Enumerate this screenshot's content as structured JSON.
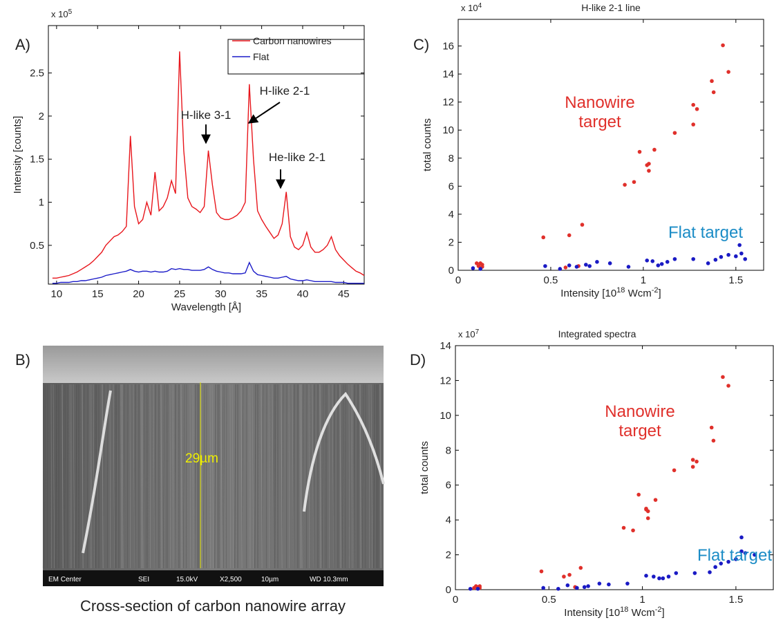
{
  "panel_labels": [
    "A)",
    "B)",
    "C)",
    "D)"
  ],
  "image_panel": {
    "measure": "29µm",
    "info_bar": [
      "EM Center",
      "SEI",
      "15.0kV",
      "X2,500",
      "10µm",
      "WD 10.3mm"
    ],
    "caption": "Cross-section of carbon nanowire array"
  },
  "chart_data": [
    {
      "type": "line",
      "xlabel": "Wavelength [Å]",
      "ylabel": "Intensity [counts]",
      "y_scale": "x 10",
      "y_scale_exp": "5",
      "legend": "upper right",
      "annotations": [
        "H-like 3-1",
        "H-like 2-1",
        "He-like 2-1"
      ],
      "xlim": [
        9,
        47.5
      ],
      "ylim": [
        0.05,
        3.05
      ],
      "xticks": [
        10,
        15,
        20,
        25,
        30,
        35,
        40,
        45
      ],
      "yticks": [
        0.5,
        1,
        1.5,
        2,
        2.5
      ],
      "x": [
        9.5,
        10,
        10.5,
        11,
        11.5,
        12,
        12.5,
        13,
        13.5,
        14,
        14.5,
        15,
        15.5,
        16,
        16.5,
        17,
        17.5,
        18,
        18.5,
        19,
        19.5,
        20,
        20.5,
        21,
        21.5,
        22,
        22.5,
        23,
        23.5,
        24,
        24.5,
        25,
        25.5,
        26,
        26.5,
        27,
        27.5,
        28,
        28.5,
        29,
        29.5,
        30,
        30.5,
        31,
        31.5,
        32,
        32.5,
        33,
        33.5,
        34,
        34.5,
        35,
        35.5,
        36,
        36.5,
        37,
        37.5,
        38,
        38.5,
        39,
        39.5,
        40,
        40.5,
        41,
        41.5,
        42,
        42.5,
        43,
        43.5,
        44,
        44.5,
        45,
        45.5,
        46,
        46.5,
        47,
        47.5
      ],
      "series": [
        {
          "name": "Carbon nanowires",
          "color": "#e8151b",
          "values": [
            0.12,
            0.12,
            0.13,
            0.14,
            0.15,
            0.17,
            0.19,
            0.22,
            0.25,
            0.28,
            0.32,
            0.37,
            0.42,
            0.5,
            0.55,
            0.6,
            0.62,
            0.66,
            0.72,
            1.77,
            0.95,
            0.75,
            0.8,
            1.0,
            0.85,
            1.35,
            0.9,
            0.95,
            1.05,
            1.25,
            1.1,
            2.75,
            1.6,
            1.05,
            0.95,
            0.92,
            0.88,
            0.95,
            1.6,
            1.2,
            0.88,
            0.82,
            0.8,
            0.8,
            0.82,
            0.85,
            0.9,
            1.0,
            2.37,
            1.5,
            0.9,
            0.8,
            0.72,
            0.65,
            0.58,
            0.62,
            0.75,
            1.12,
            0.6,
            0.48,
            0.45,
            0.5,
            0.65,
            0.48,
            0.42,
            0.42,
            0.45,
            0.5,
            0.6,
            0.45,
            0.38,
            0.33,
            0.28,
            0.24,
            0.2,
            0.18,
            0.15
          ]
        },
        {
          "name": "Flat",
          "color": "#1c1cc8",
          "values": [
            0.06,
            0.06,
            0.07,
            0.07,
            0.07,
            0.08,
            0.08,
            0.09,
            0.09,
            0.1,
            0.11,
            0.12,
            0.13,
            0.15,
            0.16,
            0.17,
            0.18,
            0.19,
            0.2,
            0.22,
            0.2,
            0.19,
            0.2,
            0.2,
            0.19,
            0.2,
            0.19,
            0.19,
            0.2,
            0.23,
            0.22,
            0.23,
            0.22,
            0.22,
            0.21,
            0.21,
            0.21,
            0.22,
            0.25,
            0.22,
            0.2,
            0.19,
            0.18,
            0.18,
            0.17,
            0.17,
            0.17,
            0.18,
            0.3,
            0.2,
            0.16,
            0.15,
            0.14,
            0.13,
            0.12,
            0.12,
            0.13,
            0.14,
            0.11,
            0.1,
            0.09,
            0.09,
            0.1,
            0.09,
            0.08,
            0.08,
            0.08,
            0.08,
            0.08,
            0.07,
            0.07,
            0.07,
            0.06,
            0.06,
            0.06,
            0.06,
            0.06
          ]
        }
      ]
    },
    {
      "type": "scatter",
      "title": "H-like 2-1 line",
      "xlabel": [
        "Intensity [10",
        "18",
        " Wcm",
        "-2",
        "]"
      ],
      "ylabel": "total counts",
      "y_scale": "x 10",
      "y_scale_exp": "4",
      "xlim": [
        0,
        1.65
      ],
      "ylim": [
        0,
        17.9
      ],
      "xticks": [
        0,
        0.5,
        1,
        1.5
      ],
      "yticks": [
        0,
        2,
        4,
        6,
        8,
        10,
        12,
        14,
        16
      ],
      "series": [
        {
          "name": "Nanowire target",
          "color": "#e0302b",
          "x": [
            0.1,
            0.11,
            0.12,
            0.13,
            0.13,
            0.46,
            0.58,
            0.6,
            0.65,
            0.67,
            0.9,
            0.95,
            0.98,
            1.02,
            1.03,
            1.03,
            1.06,
            1.17,
            1.27,
            1.27,
            1.29,
            1.37,
            1.38,
            1.43,
            1.46
          ],
          "values": [
            0.5,
            0.3,
            0.5,
            0.4,
            0.25,
            2.35,
            0.2,
            2.5,
            0.3,
            3.25,
            6.1,
            6.3,
            8.45,
            7.5,
            7.1,
            7.6,
            8.6,
            9.8,
            10.4,
            11.8,
            11.5,
            13.5,
            12.7,
            16.05,
            14.15
          ]
        },
        {
          "name": "Flat target",
          "color": "#1a1ac4",
          "label_color": "#1b8cc6",
          "x": [
            0.08,
            0.12,
            0.47,
            0.55,
            0.6,
            0.64,
            0.69,
            0.71,
            0.75,
            0.82,
            0.92,
            1.02,
            1.05,
            1.08,
            1.1,
            1.13,
            1.17,
            1.27,
            1.35,
            1.39,
            1.42,
            1.46,
            1.5,
            1.52,
            1.53,
            1.55
          ],
          "values": [
            0.15,
            0.1,
            0.3,
            0.1,
            0.35,
            0.25,
            0.4,
            0.3,
            0.6,
            0.5,
            0.25,
            0.7,
            0.65,
            0.35,
            0.45,
            0.6,
            0.8,
            0.8,
            0.5,
            0.75,
            0.95,
            1.1,
            1.0,
            1.8,
            1.2,
            0.8
          ]
        }
      ]
    },
    {
      "type": "scatter",
      "title": "Integrated spectra",
      "xlabel": [
        "Intensity [10",
        "18",
        " Wcm",
        "-2",
        "]"
      ],
      "ylabel": "total counts",
      "y_scale": "x 10",
      "y_scale_exp": "7",
      "xlim": [
        0,
        1.7
      ],
      "ylim": [
        0,
        14
      ],
      "xticks": [
        0,
        0.5,
        1,
        1.5
      ],
      "yticks": [
        0,
        2,
        4,
        6,
        8,
        10,
        12,
        14
      ],
      "series": [
        {
          "name": "Nanowire target",
          "color": "#e0302b",
          "x": [
            0.1,
            0.11,
            0.12,
            0.13,
            0.13,
            0.46,
            0.58,
            0.61,
            0.64,
            0.67,
            0.9,
            0.95,
            0.98,
            1.02,
            1.03,
            1.03,
            1.02,
            1.07,
            1.17,
            1.27,
            1.27,
            1.29,
            1.37,
            1.38,
            1.43,
            1.46
          ],
          "values": [
            0.1,
            0.2,
            0.15,
            0.2,
            0.1,
            1.05,
            0.75,
            0.85,
            0.15,
            1.25,
            3.55,
            3.4,
            5.45,
            4.6,
            4.5,
            4.1,
            4.65,
            5.15,
            6.85,
            7.05,
            7.45,
            7.35,
            9.3,
            8.55,
            12.2,
            11.7
          ]
        },
        {
          "name": "Flat target",
          "color": "#1a1ac4",
          "label_color": "#1b8cc6",
          "x": [
            0.08,
            0.12,
            0.47,
            0.55,
            0.6,
            0.65,
            0.69,
            0.71,
            0.77,
            0.82,
            0.92,
            1.02,
            1.06,
            1.09,
            1.11,
            1.14,
            1.18,
            1.28,
            1.36,
            1.39,
            1.42,
            1.46,
            1.5,
            1.53,
            1.55,
            1.53,
            1.6
          ],
          "values": [
            0.05,
            0.05,
            0.1,
            0.05,
            0.25,
            0.1,
            0.15,
            0.2,
            0.35,
            0.3,
            0.35,
            0.8,
            0.75,
            0.65,
            0.65,
            0.75,
            0.95,
            0.95,
            1.0,
            1.3,
            1.5,
            1.6,
            1.75,
            2.2,
            2.1,
            3.0,
            2.0
          ]
        }
      ]
    }
  ]
}
